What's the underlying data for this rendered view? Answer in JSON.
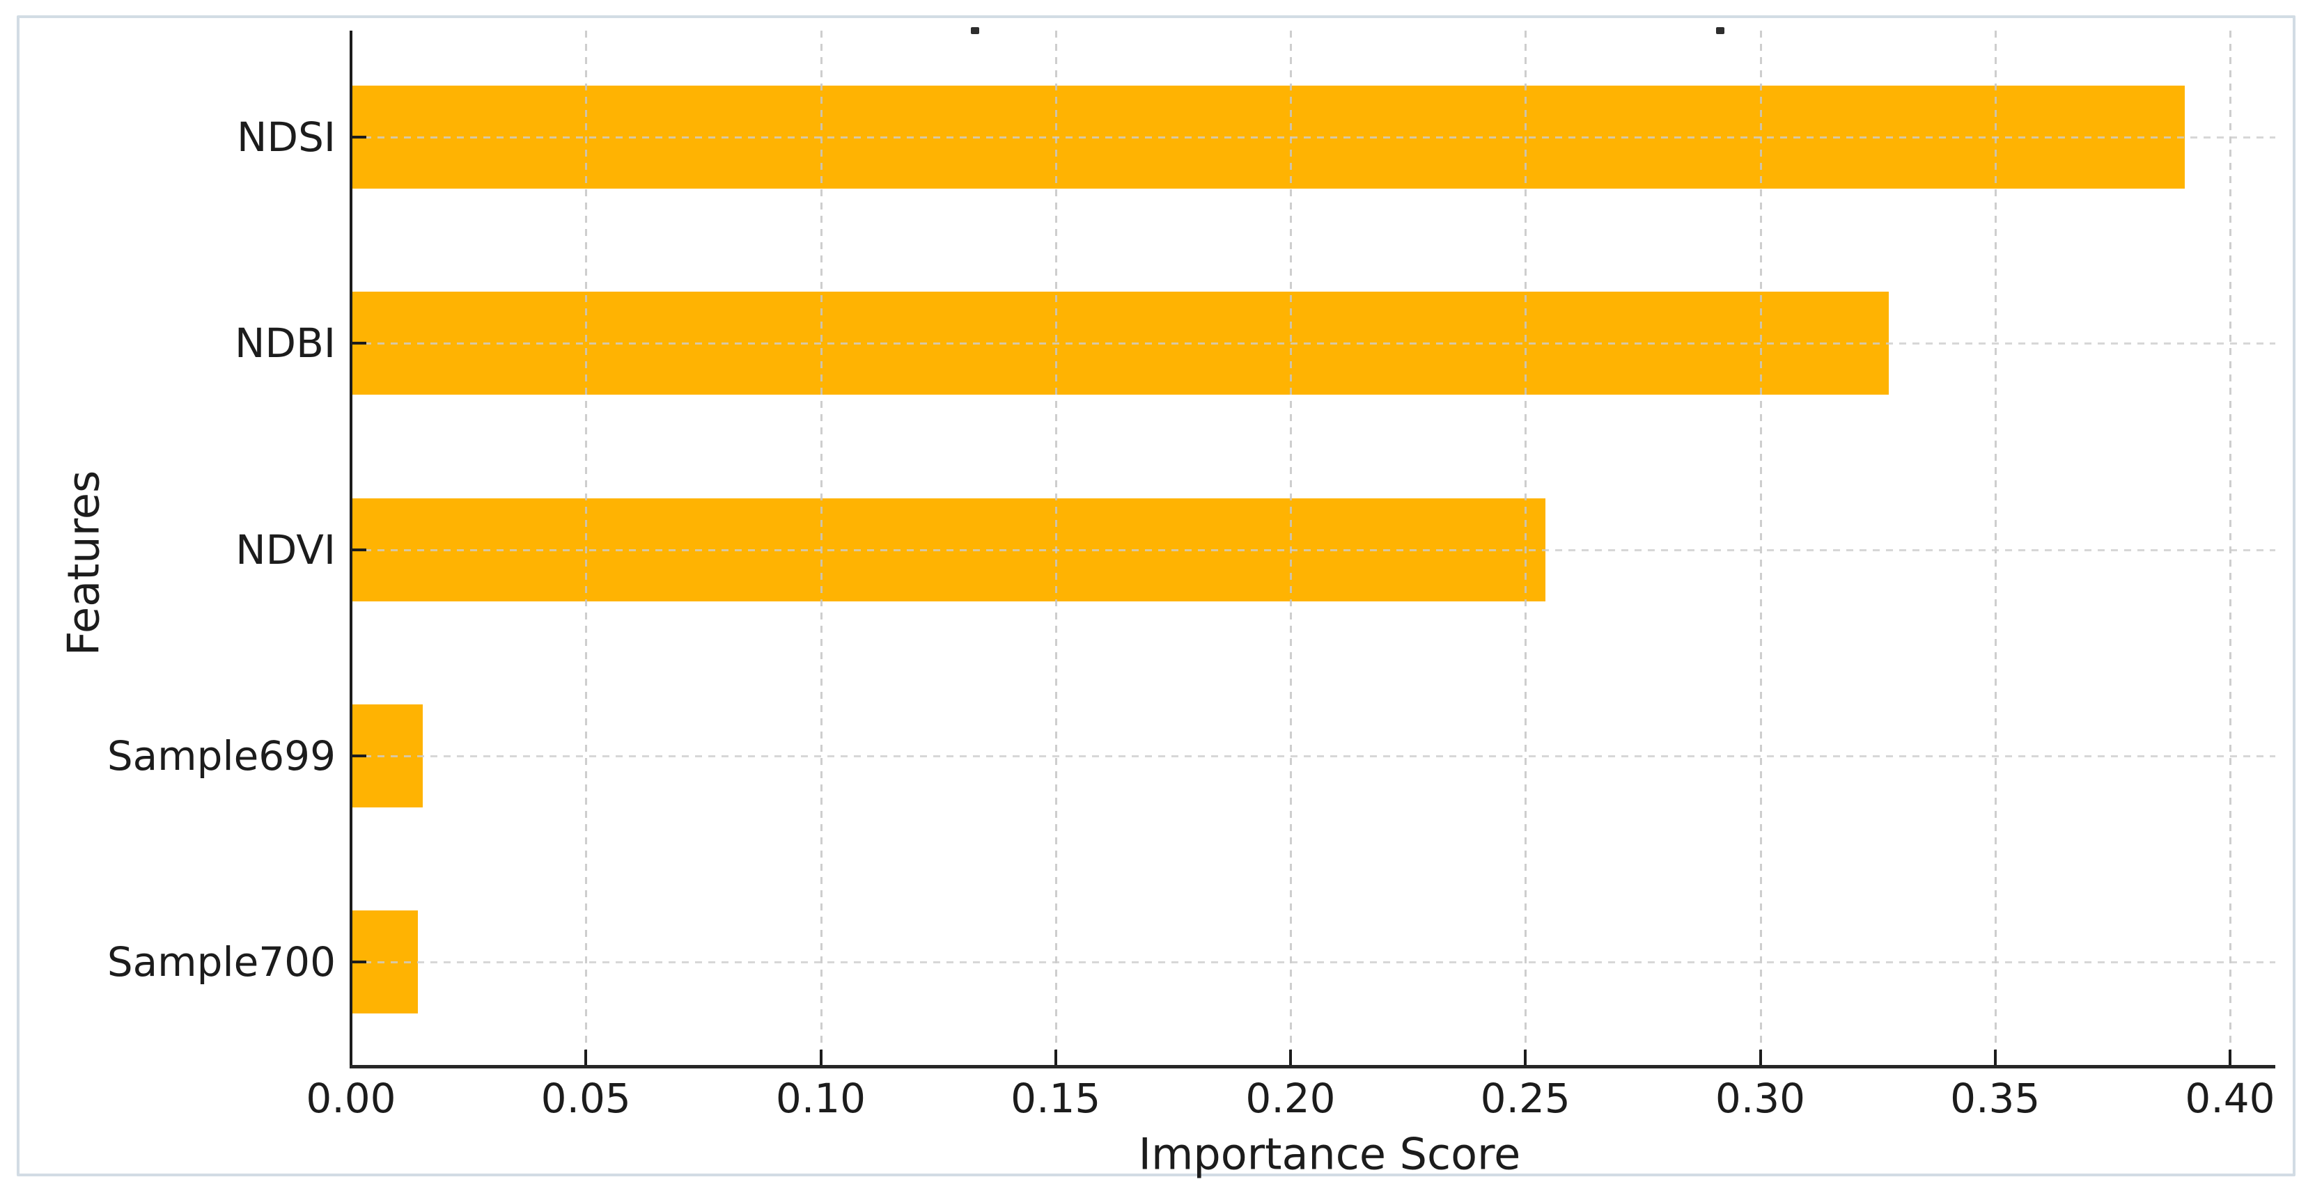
{
  "chart_data": {
    "type": "bar",
    "orientation": "horizontal",
    "title": "",
    "title_cropped": true,
    "xlabel": "Importance Score",
    "ylabel": "Features",
    "categories": [
      "NDSI",
      "NDBI",
      "NDVI",
      "Sample699",
      "Sample700"
    ],
    "values": [
      0.39,
      0.327,
      0.254,
      0.015,
      0.014
    ],
    "series": [
      {
        "name": "Importance Score",
        "values": [
          0.39,
          0.327,
          0.254,
          0.015,
          0.014
        ]
      }
    ],
    "x_ticks": [
      {
        "value": 0.0,
        "label": "0.00"
      },
      {
        "value": 0.05,
        "label": "0.05"
      },
      {
        "value": 0.1,
        "label": "0.10"
      },
      {
        "value": 0.15,
        "label": "0.15"
      },
      {
        "value": 0.2,
        "label": "0.20"
      },
      {
        "value": 0.25,
        "label": "0.25"
      },
      {
        "value": 0.3,
        "label": "0.30"
      },
      {
        "value": 0.35,
        "label": "0.35"
      },
      {
        "value": 0.4,
        "label": "0.40"
      }
    ],
    "xlim": [
      0,
      0.41
    ],
    "grid": "dashed, both axes, light gray",
    "legend": "none"
  },
  "colors": {
    "bar": "#FFB302",
    "axis": "#1c1c1c",
    "grid": "#c9c9c9",
    "panel_border": "#d2dce4",
    "background": "#ffffff"
  }
}
